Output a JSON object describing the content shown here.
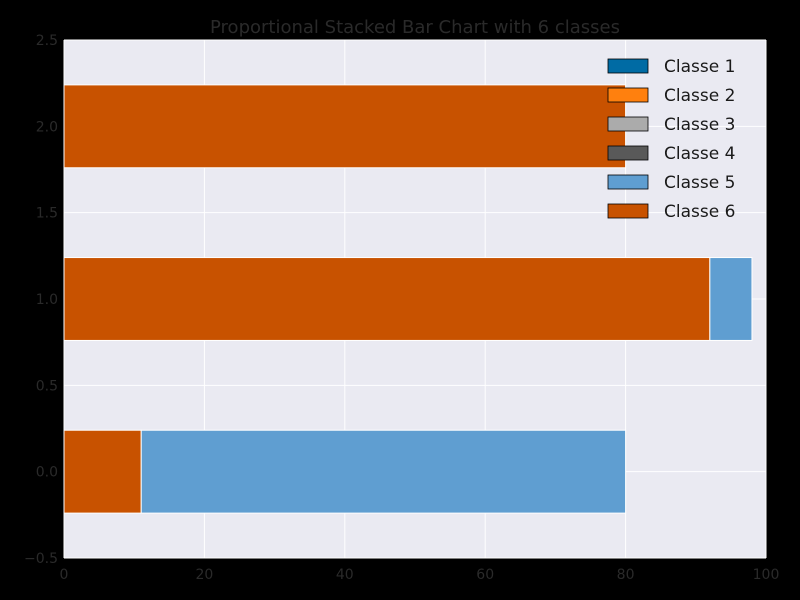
{
  "chart_data": {
    "type": "bar",
    "orientation": "horizontal",
    "stacked": true,
    "title": "Proportional Stacked Bar Chart with 6 classes",
    "xlabel": "",
    "ylabel": "",
    "xlim": [
      0,
      100
    ],
    "ylim": [
      -0.5,
      2.5
    ],
    "x_ticks": [
      "0",
      "20",
      "40",
      "60",
      "80",
      "100"
    ],
    "y_ticks": [
      "-0.5",
      "0.0",
      "0.5",
      "1.0",
      "1.5",
      "2.0",
      "2.5"
    ],
    "grid": true,
    "legend_position": "top-right",
    "bar_positions": [
      0,
      1,
      2
    ],
    "bar_height": 0.48,
    "series": [
      {
        "name": "Classe 1",
        "color": "#006BA4",
        "values": [
          0,
          0,
          0
        ]
      },
      {
        "name": "Classe 2",
        "color": "#FF800E",
        "values": [
          0,
          0,
          0
        ]
      },
      {
        "name": "Classe 3",
        "color": "#ABABAB",
        "values": [
          0,
          0,
          0
        ]
      },
      {
        "name": "Classe 4",
        "color": "#595959",
        "values": [
          0,
          0,
          0
        ]
      },
      {
        "name": "Classe 6",
        "color": "#C85200",
        "values": [
          11,
          92,
          80
        ]
      },
      {
        "name": "Classe 5",
        "color": "#5F9ED1",
        "values": [
          69,
          6,
          0
        ]
      }
    ],
    "legend_order": [
      {
        "name": "Classe 1",
        "color": "#006BA4"
      },
      {
        "name": "Classe 2",
        "color": "#FF800E"
      },
      {
        "name": "Classe 3",
        "color": "#ABABAB"
      },
      {
        "name": "Classe 4",
        "color": "#595959"
      },
      {
        "name": "Classe 5",
        "color": "#5F9ED1"
      },
      {
        "name": "Classe 6",
        "color": "#C85200"
      }
    ],
    "colors": {
      "plot_background": "#EAEAF2",
      "figure_background": "#000000",
      "grid": "#FFFFFF"
    }
  }
}
